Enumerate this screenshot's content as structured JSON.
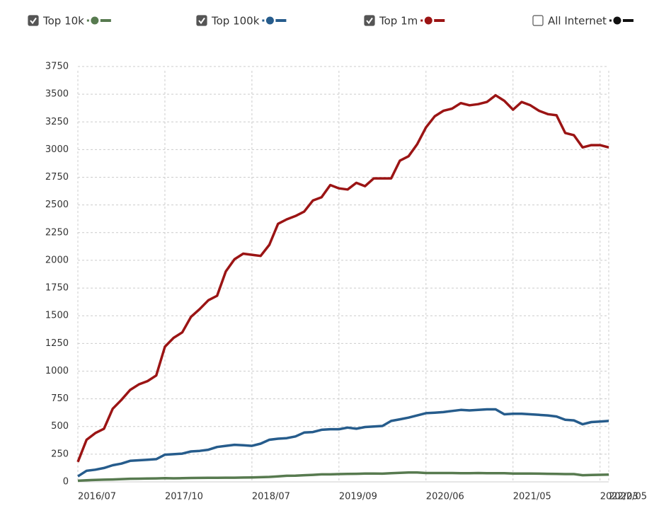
{
  "chart_data": {
    "type": "line",
    "categories": [
      "2016/07",
      null,
      null,
      null,
      null,
      null,
      null,
      null,
      null,
      null,
      "2017/10",
      null,
      null,
      null,
      null,
      null,
      null,
      null,
      null,
      null,
      "2018/07",
      null,
      null,
      null,
      null,
      null,
      null,
      null,
      null,
      null,
      "2019/09",
      null,
      null,
      null,
      null,
      null,
      null,
      null,
      null,
      null,
      "2020/06",
      null,
      null,
      null,
      null,
      null,
      null,
      null,
      null,
      null,
      "2021/05",
      null,
      null,
      null,
      null,
      null,
      null,
      null,
      null,
      null,
      "2022/03",
      "2022/05"
    ],
    "series": [
      {
        "name": "Top 10k",
        "color": "#577a4f",
        "checked": true,
        "values": [
          10,
          15,
          18,
          20,
          22,
          25,
          28,
          29,
          30,
          31,
          33,
          32,
          33,
          35,
          36,
          37,
          37,
          38,
          38,
          39,
          40,
          42,
          45,
          50,
          55,
          56,
          60,
          63,
          68,
          68,
          70,
          72,
          73,
          75,
          75,
          74,
          78,
          82,
          85,
          85,
          80,
          80,
          80,
          80,
          78,
          78,
          80,
          78,
          78,
          78,
          75,
          75,
          75,
          74,
          73,
          72,
          70,
          70,
          60,
          62,
          64,
          65
        ]
      },
      {
        "name": "Top 100k",
        "color": "#265c8c",
        "checked": true,
        "values": [
          50,
          100,
          110,
          125,
          150,
          165,
          190,
          195,
          200,
          205,
          245,
          250,
          255,
          275,
          280,
          290,
          315,
          325,
          335,
          330,
          325,
          345,
          380,
          390,
          395,
          410,
          445,
          450,
          470,
          475,
          475,
          490,
          480,
          495,
          500,
          505,
          550,
          565,
          580,
          600,
          620,
          625,
          630,
          640,
          650,
          645,
          650,
          655,
          655,
          610,
          615,
          615,
          610,
          605,
          600,
          590,
          560,
          555,
          520,
          540,
          545,
          550
        ]
      },
      {
        "name": "Top 1m",
        "color": "#9b1414",
        "checked": true,
        "values": [
          180,
          380,
          440,
          480,
          660,
          740,
          830,
          880,
          910,
          960,
          1220,
          1300,
          1350,
          1490,
          1560,
          1640,
          1680,
          1900,
          2010,
          2060,
          2050,
          2040,
          2140,
          2330,
          2370,
          2400,
          2440,
          2540,
          2570,
          2680,
          2650,
          2640,
          2700,
          2670,
          2740,
          2740,
          2740,
          2900,
          2940,
          3050,
          3200,
          3300,
          3350,
          3370,
          3420,
          3400,
          3410,
          3430,
          3490,
          3440,
          3360,
          3430,
          3400,
          3350,
          3320,
          3310,
          3150,
          3130,
          3020,
          3040,
          3040,
          3020
        ]
      },
      {
        "name": "All Internet",
        "color": "#111111",
        "checked": false
      }
    ],
    "ylim": [
      0,
      3750
    ],
    "yticks": [
      0,
      250,
      500,
      750,
      1000,
      1250,
      1500,
      1750,
      2000,
      2250,
      2500,
      2750,
      3000,
      3250,
      3500,
      3750
    ],
    "grid": true
  }
}
